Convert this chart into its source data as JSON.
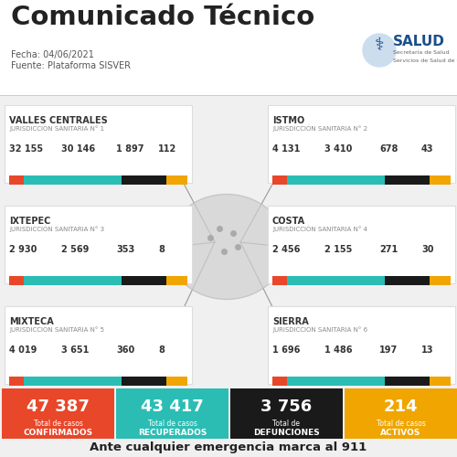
{
  "title": "Comunicado Técnico",
  "date": "Fecha: 04/06/2021",
  "source": "Fuente: Plataforma SISVER",
  "bg_color": "#f0f0f0",
  "regions": [
    {
      "name": "VALLES CENTRALES",
      "juris": "JURISDICCIÓN SANITARIA N° 1",
      "confirmed": "32 155",
      "recovered": "30 146",
      "deaths": "1 897",
      "active": "112",
      "side": "left",
      "row": 0
    },
    {
      "name": "ISTMO",
      "juris": "JURISDICCIÓN SANITARIA N° 2",
      "confirmed": "4 131",
      "recovered": "3 410",
      "deaths": "678",
      "active": "43",
      "side": "right",
      "row": 0
    },
    {
      "name": "IXTEPEC",
      "juris": "JURISDICCIÓN SANITARIA N° 3",
      "confirmed": "2 930",
      "recovered": "2 569",
      "deaths": "353",
      "active": "8",
      "side": "left",
      "row": 1
    },
    {
      "name": "COSTA",
      "juris": "JURISDICCIÓN SANITARIA N° 4",
      "confirmed": "2 456",
      "recovered": "2 155",
      "deaths": "271",
      "active": "30",
      "side": "right",
      "row": 1
    },
    {
      "name": "MIXTECA",
      "juris": "JURISDICCIÓN SANITARIA N° 5",
      "confirmed": "4 019",
      "recovered": "3 651",
      "deaths": "360",
      "active": "8",
      "side": "left",
      "row": 2
    },
    {
      "name": "SIERRA",
      "juris": "JURISDICCIÓN SANITARIA N° 6",
      "confirmed": "1 696",
      "recovered": "1 486",
      "deaths": "197",
      "active": "13",
      "side": "right",
      "row": 2
    }
  ],
  "totals": [
    {
      "value": "47 387",
      "label1": "Total de casos",
      "label2": "CONFIRMADOS",
      "color": "#e8472a"
    },
    {
      "value": "43 417",
      "label1": "Total de casos",
      "label2": "RECUPERADOS",
      "color": "#2bbdb4"
    },
    {
      "value": "3 756",
      "label1": "Total de",
      "label2": "DEFUNCIONES",
      "color": "#1a1a1a"
    },
    {
      "value": "214",
      "label1": "Total de casos",
      "label2": "ACTIVOS",
      "color": "#f0a500"
    }
  ],
  "footer": "Ante cualquier emergencia marca al 911",
  "color_confirmed": "#e8472a",
  "color_recovered": "#2bbdb4",
  "color_deaths": "#1a1a1a",
  "color_active": "#f0a500",
  "salud_color": "#1a4f8a"
}
